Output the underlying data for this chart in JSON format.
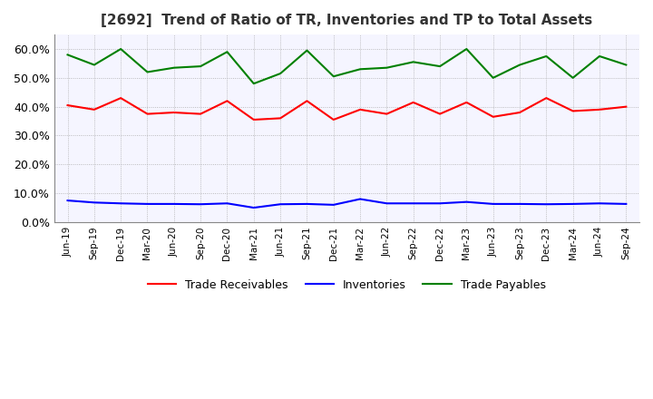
{
  "title": "[2692]  Trend of Ratio of TR, Inventories and TP to Total Assets",
  "x_labels": [
    "Jun-19",
    "Sep-19",
    "Dec-19",
    "Mar-20",
    "Jun-20",
    "Sep-20",
    "Dec-20",
    "Mar-21",
    "Jun-21",
    "Sep-21",
    "Dec-21",
    "Mar-22",
    "Jun-22",
    "Sep-22",
    "Dec-22",
    "Mar-23",
    "Jun-23",
    "Sep-23",
    "Dec-23",
    "Mar-24",
    "Jun-24",
    "Sep-24"
  ],
  "trade_receivables": [
    0.405,
    0.39,
    0.43,
    0.375,
    0.38,
    0.375,
    0.42,
    0.355,
    0.36,
    0.42,
    0.355,
    0.39,
    0.375,
    0.415,
    0.375,
    0.415,
    0.365,
    0.38,
    0.43,
    0.385,
    0.39,
    0.4
  ],
  "inventories": [
    0.075,
    0.068,
    0.065,
    0.063,
    0.063,
    0.062,
    0.065,
    0.05,
    0.062,
    0.063,
    0.06,
    0.08,
    0.065,
    0.065,
    0.065,
    0.07,
    0.063,
    0.063,
    0.062,
    0.063,
    0.065,
    0.063
  ],
  "trade_payables": [
    0.58,
    0.545,
    0.6,
    0.52,
    0.535,
    0.54,
    0.59,
    0.48,
    0.515,
    0.595,
    0.505,
    0.53,
    0.535,
    0.555,
    0.54,
    0.6,
    0.5,
    0.545,
    0.575,
    0.5,
    0.575,
    0.545
  ],
  "tr_color": "#ff0000",
  "inv_color": "#0000ff",
  "tp_color": "#008000",
  "ylim": [
    0.0,
    0.65
  ],
  "yticks": [
    0.0,
    0.1,
    0.2,
    0.3,
    0.4,
    0.5,
    0.6
  ],
  "legend_labels": [
    "Trade Receivables",
    "Inventories",
    "Trade Payables"
  ],
  "background_color": "#ffffff",
  "plot_bg_color": "#f5f5ff",
  "grid_color": "#aaaaaa"
}
